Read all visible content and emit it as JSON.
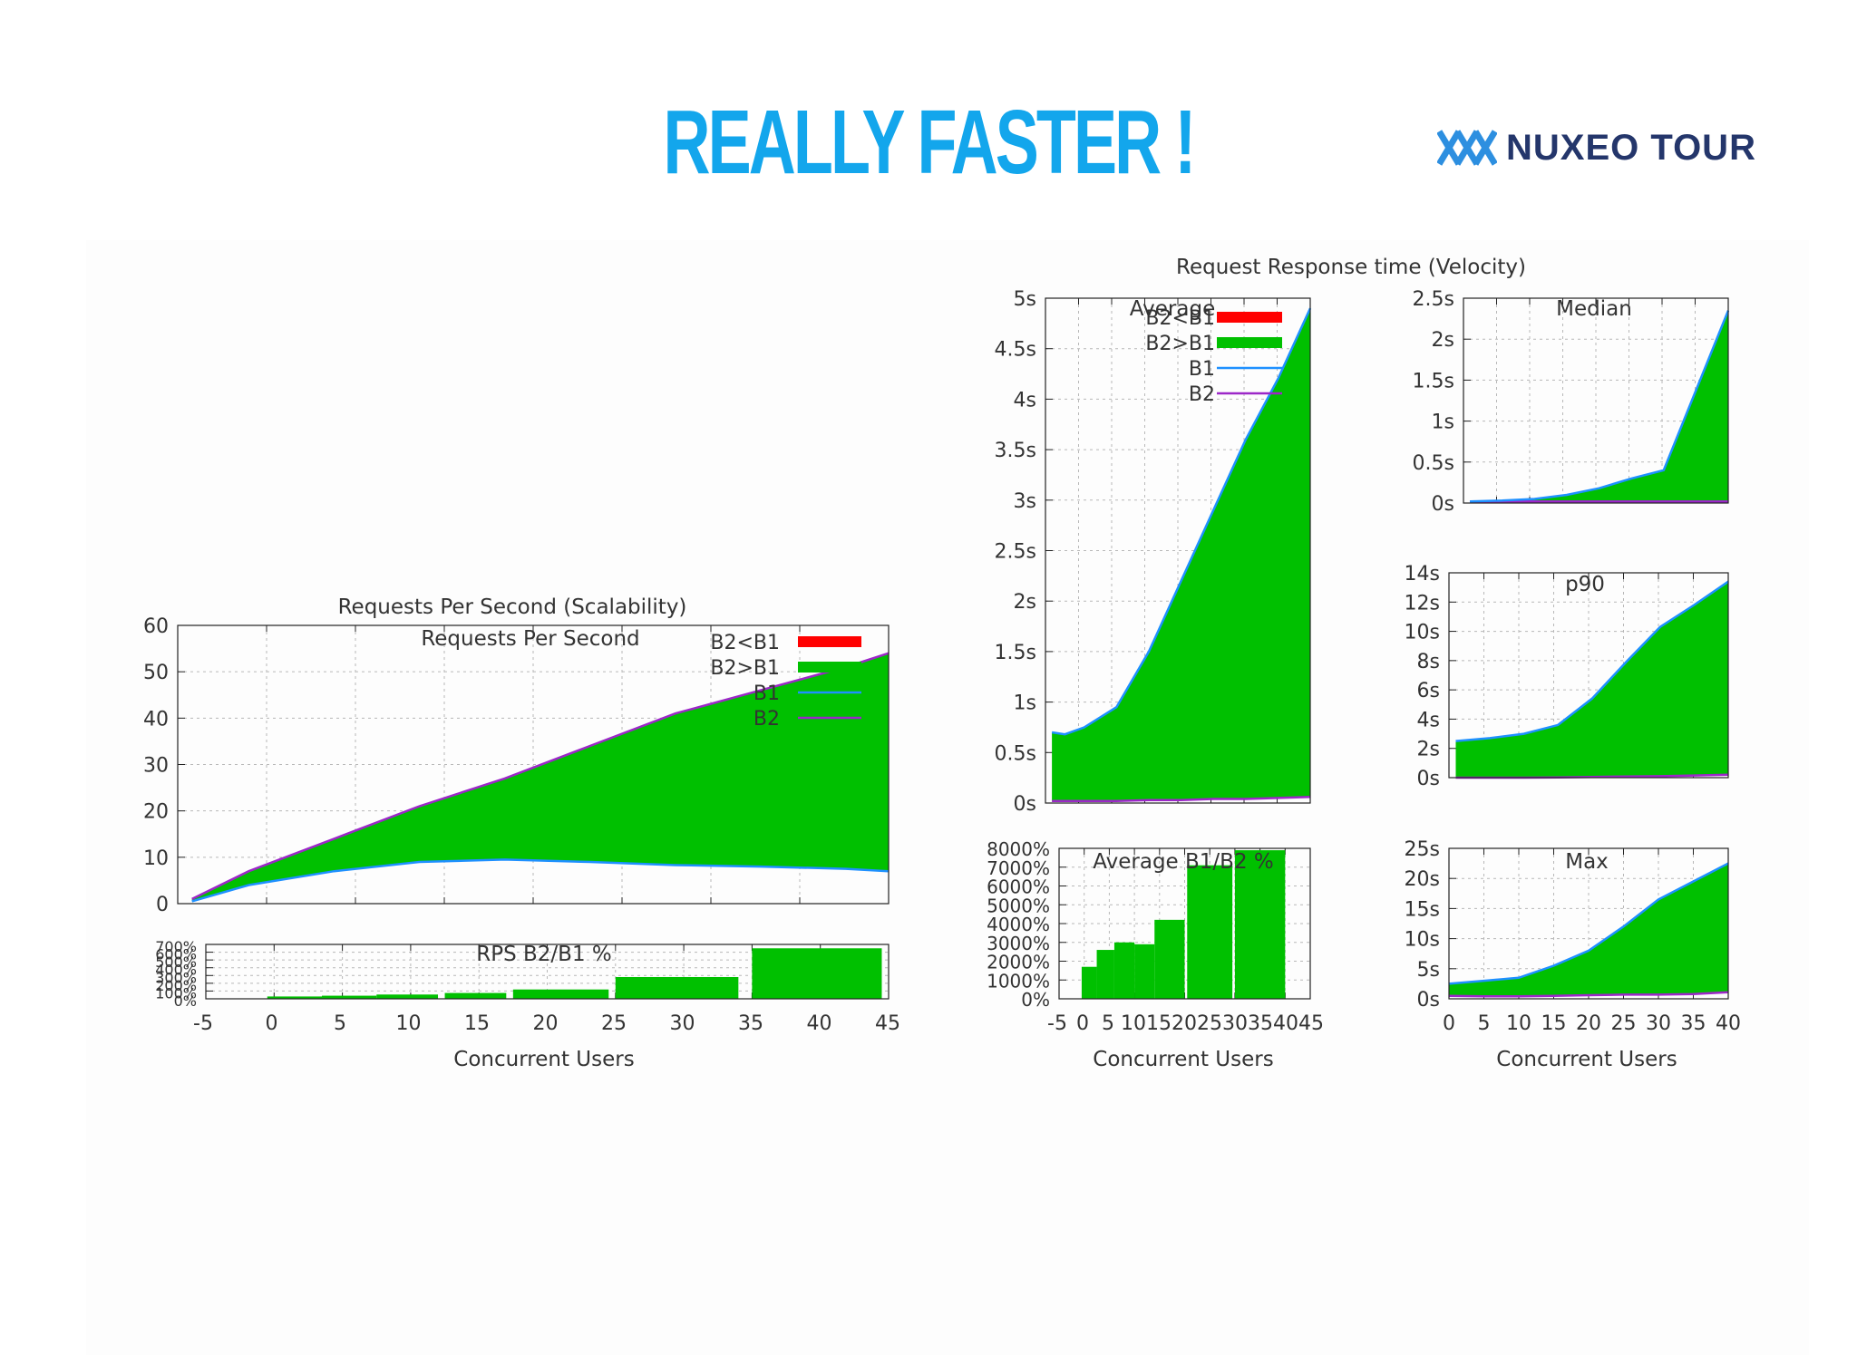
{
  "slide": {
    "title": "REALLY FASTER !",
    "title_color": "#13a6ec"
  },
  "logo": {
    "text": "NUXEO TOUR",
    "text_color": "#24366b",
    "mark_color": "#2d8fe0"
  },
  "colors": {
    "b2_lt_b1": "#ff0000",
    "b2_gt_b1": "#00c000",
    "b1": "#1e90ff",
    "b2": "#9c27c8"
  },
  "chart_data": [
    {
      "id": "rps",
      "type": "area",
      "title": "Requests Per Second (Scalability)",
      "key_title": "Requests Per Second",
      "legend": [
        "B2<B1",
        "B2>B1",
        "B1",
        "B2"
      ],
      "legend_position": "top-right",
      "x": [
        -4,
        0,
        6,
        12,
        18,
        24,
        30,
        36,
        42,
        45
      ],
      "series": [
        {
          "name": "B1",
          "values": [
            0.5,
            4,
            7,
            9,
            9.5,
            9,
            8.3,
            8,
            7.5,
            7
          ]
        },
        {
          "name": "B2",
          "values": [
            1,
            7,
            14,
            21,
            27,
            34,
            41,
            46,
            51,
            54
          ]
        }
      ],
      "ylim": [
        0,
        60
      ],
      "yticks": [
        "0",
        "10",
        "20",
        "30",
        "40",
        "50",
        "60"
      ],
      "xlim": [
        -5,
        45
      ],
      "xticks": [
        "-5",
        "0",
        "5",
        "10",
        "15",
        "20",
        "25",
        "30",
        "35",
        "40",
        "45"
      ],
      "xlabel": "Concurrent Users",
      "grid": true
    },
    {
      "id": "rps_ratio",
      "type": "bar",
      "title": "RPS B2/B1 %",
      "bars": [
        {
          "x0": -0.5,
          "x1": 3.5,
          "value": 30
        },
        {
          "x0": 3.5,
          "x1": 7.5,
          "value": 40
        },
        {
          "x0": 7.5,
          "x1": 12,
          "value": 55
        },
        {
          "x0": 12.5,
          "x1": 17,
          "value": 75
        },
        {
          "x0": 17.5,
          "x1": 24.5,
          "value": 120
        },
        {
          "x0": 25,
          "x1": 34,
          "value": 280
        },
        {
          "x0": 35,
          "x1": 44.5,
          "value": 650
        }
      ],
      "ylim": [
        0,
        700
      ],
      "yticks": [
        "0%",
        "100%",
        "200%",
        "300%",
        "400%",
        "500%",
        "600%",
        "700%"
      ],
      "xlim": [
        -5,
        45
      ],
      "grid": true
    },
    {
      "id": "avg",
      "type": "area",
      "title": "Average",
      "figure_title": "Request Response time (Velocity)",
      "legend": [
        "B2<B1",
        "B2>B1",
        "B1",
        "B2"
      ],
      "legend_position": "top",
      "x": [
        0,
        2,
        5,
        10,
        15,
        20,
        25,
        30,
        35,
        40
      ],
      "series": [
        {
          "name": "B1",
          "values": [
            0.7,
            0.68,
            0.75,
            0.95,
            1.5,
            2.2,
            2.9,
            3.6,
            4.2,
            4.9
          ]
        },
        {
          "name": "B2",
          "values": [
            0.02,
            0.02,
            0.02,
            0.02,
            0.03,
            0.03,
            0.04,
            0.04,
            0.05,
            0.06
          ]
        }
      ],
      "ylim": [
        0,
        5
      ],
      "yticks": [
        "0s",
        "0.5s",
        "1s",
        "1.5s",
        "2s",
        "2.5s",
        "3s",
        "3.5s",
        "4s",
        "4.5s",
        "5s"
      ],
      "xlim": [
        -1,
        40
      ],
      "grid": true
    },
    {
      "id": "median",
      "type": "area",
      "title": "Median",
      "x": [
        0,
        5,
        10,
        15,
        20,
        25,
        30,
        40
      ],
      "series": [
        {
          "name": "B1",
          "values": [
            0.02,
            0.03,
            0.05,
            0.1,
            0.18,
            0.3,
            0.4,
            2.35
          ]
        },
        {
          "name": "B2",
          "values": [
            0.02,
            0.02,
            0.02,
            0.02,
            0.02,
            0.02,
            0.02,
            0.02
          ]
        }
      ],
      "ylim": [
        0,
        2.5
      ],
      "yticks": [
        "0s",
        "0.5s",
        "1s",
        "1.5s",
        "2s",
        "2.5s"
      ],
      "xlim": [
        -1,
        40
      ],
      "grid": true
    },
    {
      "id": "p90",
      "type": "area",
      "title": "p90",
      "x": [
        0,
        5,
        10,
        15,
        20,
        25,
        30,
        35,
        40
      ],
      "series": [
        {
          "name": "B1",
          "values": [
            2.5,
            2.7,
            3,
            3.6,
            5.4,
            7.9,
            10.3,
            11.8,
            13.4
          ]
        },
        {
          "name": "B2",
          "values": [
            0,
            0,
            0,
            0.02,
            0.05,
            0.08,
            0.1,
            0.15,
            0.2
          ]
        }
      ],
      "ylim": [
        0,
        14
      ],
      "yticks": [
        "0s",
        "2s",
        "4s",
        "6s",
        "8s",
        "10s",
        "12s",
        "14s"
      ],
      "xlim": [
        -1,
        40
      ],
      "grid": true
    },
    {
      "id": "avg_ratio",
      "type": "bar",
      "title": "Average B1/B2 %",
      "bars": [
        {
          "x0": -0.5,
          "x1": 2.5,
          "value": 1700
        },
        {
          "x0": 2.5,
          "x1": 6,
          "value": 2600
        },
        {
          "x0": 6,
          "x1": 10,
          "value": 3000
        },
        {
          "x0": 10,
          "x1": 14,
          "value": 2900
        },
        {
          "x0": 14,
          "x1": 20,
          "value": 4200
        },
        {
          "x0": 20.5,
          "x1": 29.5,
          "value": 7100
        },
        {
          "x0": 30,
          "x1": 40,
          "value": 7900
        }
      ],
      "ylim": [
        0,
        8000
      ],
      "yticks": [
        "0%",
        "1000%",
        "2000%",
        "3000%",
        "4000%",
        "5000%",
        "6000%",
        "7000%",
        "8000%"
      ],
      "xlim": [
        -5,
        45
      ],
      "xticks": [
        "-5",
        "0",
        "5",
        "10",
        "15",
        "20",
        "25",
        "30",
        "35",
        "40",
        "45"
      ],
      "xlabel": "Concurrent Users",
      "grid": true
    },
    {
      "id": "max",
      "type": "area",
      "title": "Max",
      "x": [
        0,
        5,
        10,
        15,
        20,
        25,
        30,
        35,
        40
      ],
      "series": [
        {
          "name": "B1",
          "values": [
            2.5,
            3,
            3.5,
            5.5,
            8,
            12,
            16.5,
            19.5,
            22.5
          ]
        },
        {
          "name": "B2",
          "values": [
            0.5,
            0.4,
            0.4,
            0.5,
            0.6,
            0.7,
            0.7,
            0.8,
            1.1
          ]
        }
      ],
      "ylim": [
        0,
        25
      ],
      "yticks": [
        "0s",
        "5s",
        "10s",
        "15s",
        "20s",
        "25s"
      ],
      "xlim": [
        0,
        40
      ],
      "xticks": [
        "0",
        "5",
        "10",
        "15",
        "20",
        "25",
        "30",
        "35",
        "40"
      ],
      "xlabel": "Concurrent Users",
      "grid": true
    }
  ]
}
